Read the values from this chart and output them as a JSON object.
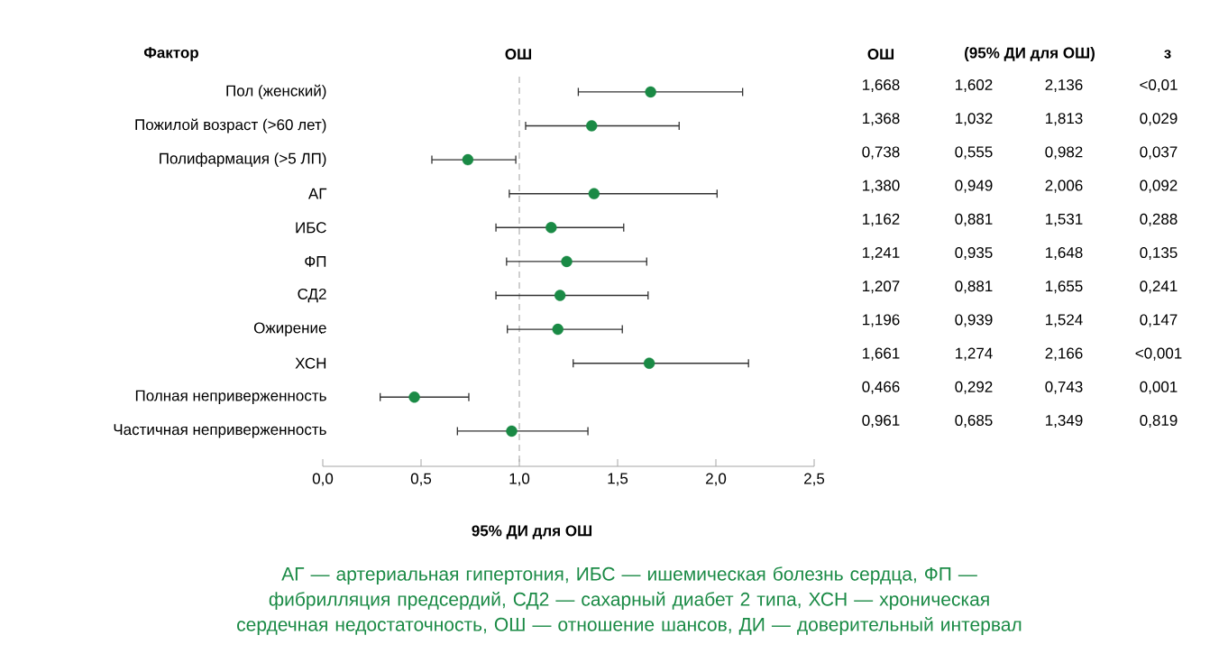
{
  "chart_data": [
    {
      "type": "scatter",
      "orientation": "horizontal",
      "title": "ОШ",
      "xlabel": "95% ДИ для ОШ",
      "categories": [
        "Пол (женский)",
        "Пожилой возраст (>60 лет)",
        "Полифармация (>5 ЛП)",
        "АГ",
        "ИБС",
        "ФП",
        "СД2",
        "Ожирение",
        "ХСН",
        "Полная неприверженность",
        "Частичная неприверженность"
      ],
      "values": [
        1.668,
        1.368,
        0.738,
        1.38,
        1.162,
        1.241,
        1.207,
        1.196,
        1.661,
        0.466,
        0.961
      ],
      "errors": [
        [
          1.3,
          2.136
        ],
        [
          1.032,
          1.813
        ],
        [
          0.555,
          0.982
        ],
        [
          0.949,
          2.006
        ],
        [
          0.881,
          1.531
        ],
        [
          0.935,
          1.648
        ],
        [
          0.881,
          1.655
        ],
        [
          0.939,
          1.524
        ],
        [
          1.274,
          2.166
        ],
        [
          0.292,
          0.743
        ],
        [
          0.685,
          1.349
        ]
      ],
      "color": "#1a8a45",
      "xlim": [
        0,
        2.5
      ],
      "xticks": [
        {
          "value": 0,
          "label": "0,0"
        },
        {
          "value": 0.5,
          "label": "0,5"
        },
        {
          "value": 1,
          "label": "1,0"
        },
        {
          "value": 1.5,
          "label": "1,5"
        },
        {
          "value": 2,
          "label": "2,0"
        },
        {
          "value": 2.5,
          "label": "2,5"
        }
      ],
      "ref_lines": [
        {
          "axis": "x",
          "value": 1,
          "color": "#b0b0b0",
          "line_style": "dashed"
        }
      ],
      "annotations": [
        "Фактор",
        "АГ — артериальная гипертония, ИБС — ишемическая болезнь сердца, ФП — фибрилляция предсердий, СД2 — сахарный диабет 2 типа, ХСН — хроническая сердечная недостаточность, ОШ — отношение шансов, ДИ — доверительный интервал"
      ]
    },
    {
      "type": "other",
      "annotations": [
        "ОШ",
        "(95% ДИ для ОШ)",
        "з",
        "1,668",
        "1,602",
        "2,136",
        "<0,01",
        "1,368",
        "1,032",
        "1,813",
        "0,029",
        "0,738",
        "0,555",
        "0,982",
        "0,037",
        "1,380",
        "0,949",
        "2,006",
        "0,092",
        "1,162",
        "0,881",
        "1,531",
        "0,288",
        "1,241",
        "0,935",
        "1,648",
        "0,135",
        "1,207",
        "0,881",
        "1,655",
        "0,241",
        "1,196",
        "0,939",
        "1,524",
        "0,147",
        "1,661",
        "1,274",
        "2,166",
        "<0,001",
        "0,466",
        "0,292",
        "0,743",
        "0,001",
        "0,961",
        "0,685",
        "1,349",
        "0,819"
      ]
    }
  ]
}
